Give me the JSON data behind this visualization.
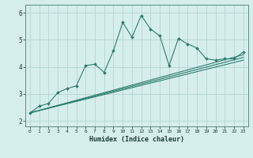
{
  "title": "",
  "xlabel": "Humidex (Indice chaleur)",
  "bg_color": "#d5eeec",
  "grid_color": "#b8d8d5",
  "line_color": "#2e7d6e",
  "xlim": [
    -0.5,
    23.5
  ],
  "ylim": [
    1.8,
    6.3
  ],
  "xticks": [
    0,
    1,
    2,
    3,
    4,
    5,
    6,
    7,
    8,
    9,
    10,
    11,
    12,
    13,
    14,
    15,
    16,
    17,
    18,
    19,
    20,
    21,
    22,
    23
  ],
  "yticks": [
    2,
    3,
    4,
    5,
    6
  ],
  "main_x": [
    0,
    1,
    2,
    3,
    4,
    5,
    6,
    7,
    8,
    9,
    10,
    11,
    12,
    13,
    14,
    15,
    16,
    17,
    18,
    19,
    20,
    21,
    22,
    23
  ],
  "main_y": [
    2.3,
    2.55,
    2.65,
    3.05,
    3.2,
    3.3,
    4.05,
    4.1,
    3.8,
    4.6,
    5.65,
    5.1,
    5.9,
    5.4,
    5.15,
    4.05,
    5.05,
    4.85,
    4.7,
    4.3,
    4.25,
    4.3,
    4.3,
    4.55
  ],
  "line2_x": [
    0,
    23
  ],
  "line2_y": [
    2.3,
    4.45
  ],
  "line3_x": [
    0,
    23
  ],
  "line3_y": [
    2.3,
    4.35
  ],
  "line4_x": [
    0,
    23
  ],
  "line4_y": [
    2.3,
    4.25
  ]
}
